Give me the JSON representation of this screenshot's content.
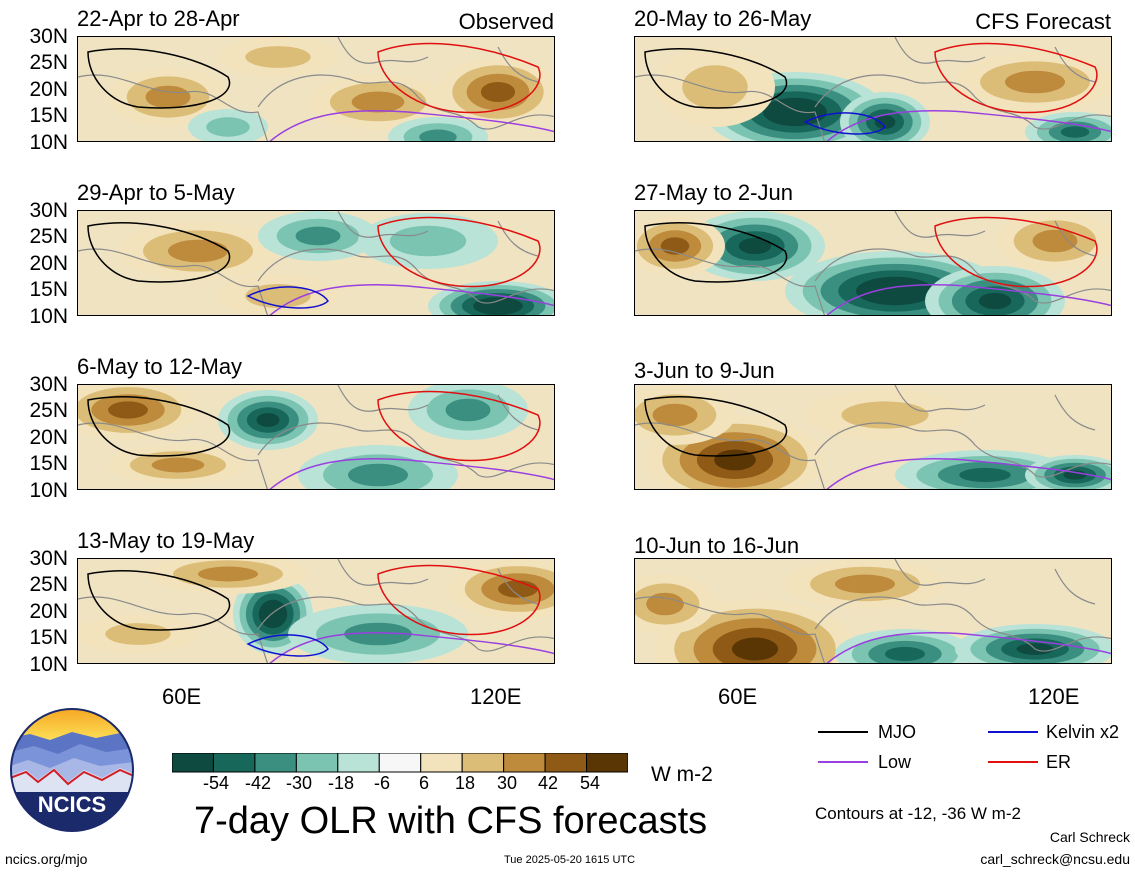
{
  "colors": {
    "mjo": "#000000",
    "kelvin": "#1010d0",
    "low": "#9a3fe0",
    "er": "#e01010",
    "land": "#8a8a8a",
    "scale": [
      "#0e4a3f",
      "#17675a",
      "#3a8f80",
      "#7bc4b2",
      "#b8e3d6",
      "#f7f7f7",
      "#f3e3bd",
      "#dcbd78",
      "#be8a3c",
      "#8f5a15",
      "#5a3605"
    ]
  },
  "panels": [
    {
      "title": "22-Apr to 28-Apr",
      "corner": "Observed"
    },
    {
      "title": "20-May to 26-May",
      "corner": "CFS Forecast"
    },
    {
      "title": "29-Apr to 5-May",
      "corner": ""
    },
    {
      "title": "27-May to 2-Jun",
      "corner": ""
    },
    {
      "title": "6-May to 12-May",
      "corner": ""
    },
    {
      "title": "3-Jun to 9-Jun",
      "corner": ""
    },
    {
      "title": "13-May to 19-May",
      "corner": ""
    },
    {
      "title": "10-Jun to 16-Jun",
      "corner": ""
    }
  ],
  "lat_labels": [
    "30N",
    "25N",
    "20N",
    "15N",
    "10N"
  ],
  "lon_labels": [
    "60E",
    "120E"
  ],
  "colorbar": {
    "ticks": [
      "-54",
      "-42",
      "-30",
      "-18",
      "-6",
      "6",
      "18",
      "30",
      "42",
      "54"
    ],
    "units": "W m-2"
  },
  "legend": {
    "mjo": "MJO",
    "kelvin": "Kelvin x2",
    "low": "Low",
    "er": "ER",
    "contours_note": "Contours at -12, -36 W m-2"
  },
  "main_title": "7-day OLR with CFS forecasts",
  "logo_text": "NCICS",
  "footer": {
    "url": "ncics.org/mjo",
    "timestamp": "Tue 2025-05-20 1615 UTC",
    "author": "Carl Schreck",
    "email": "carl_schreck@ncsu.edu"
  }
}
